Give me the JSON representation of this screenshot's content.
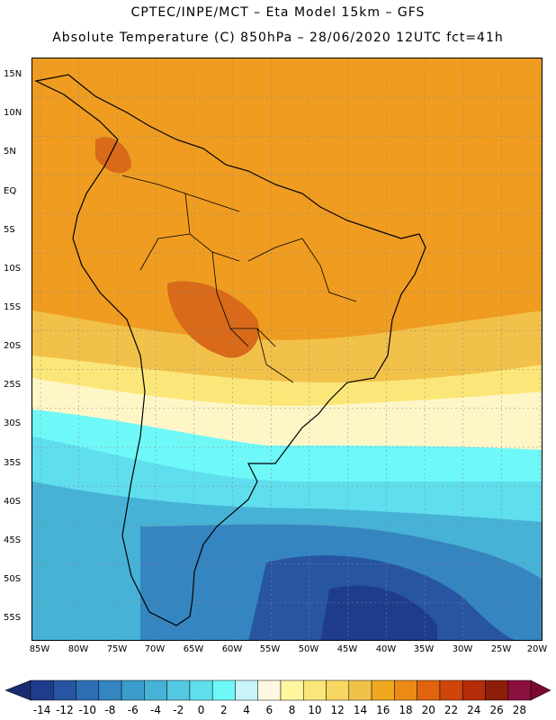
{
  "header": {
    "line1": "CPTEC/INPE/MCT –  Eta Model 15km – GFS",
    "line2": "Absolute Temperature (C) 850hPa – 28/06/2020 12UTC fct=41h"
  },
  "axes": {
    "lat_labels": [
      "15N",
      "10N",
      "5N",
      "EQ",
      "5S",
      "10S",
      "15S",
      "20S",
      "25S",
      "30S",
      "35S",
      "40S",
      "45S",
      "50S",
      "55S"
    ],
    "lon_labels": [
      "85W",
      "80W",
      "75W",
      "70W",
      "65W",
      "60W",
      "55W",
      "50W",
      "45W",
      "40W",
      "35W",
      "30W",
      "25W",
      "20W"
    ]
  },
  "legend": {
    "labels": [
      "-14",
      "-12",
      "-10",
      "-8",
      "-6",
      "-4",
      "-2",
      "0",
      "2",
      "4",
      "6",
      "8",
      "10",
      "12",
      "14",
      "16",
      "18",
      "20",
      "22",
      "24",
      "26",
      "28"
    ],
    "colors": [
      "#1f3c8c",
      "#2755a2",
      "#2e6db3",
      "#3585c0",
      "#3b9dcb",
      "#46b2d6",
      "#55c8e2",
      "#5fdeed",
      "#6ff8f8",
      "#c8f4f8",
      "#fff8e0",
      "#fff6a0",
      "#fbe779",
      "#f7d762",
      "#f2c14a",
      "#efa920",
      "#eb8a14",
      "#e0640d",
      "#cf450a",
      "#b42c08",
      "#8c1e0a",
      "#8b1040"
    ],
    "left_arrow_color": "#1a2a6e",
    "right_arrow_color": "#7a0a30"
  },
  "map_colors": {
    "hot": "#d86a1a",
    "warm": "#ef9c20",
    "mild": "#f2c14a",
    "cool_yellow": "#fbe779",
    "pale": "#fff6c8",
    "cyan": "#6ff8f8",
    "light_blue": "#5fdeed",
    "mid_blue": "#46b2d6",
    "blue": "#3585c0",
    "deep_blue": "#2755a2",
    "darkest": "#1f3c8c"
  }
}
